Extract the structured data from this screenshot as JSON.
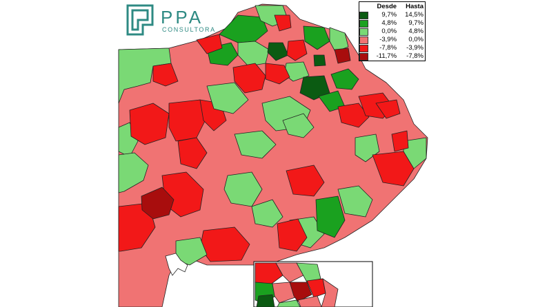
{
  "logo": {
    "brand": "PPA",
    "subtitle": "CONSULTORA"
  },
  "legend": {
    "headers": [
      "Desde",
      "Hasta"
    ],
    "rows": [
      {
        "from": "9,7%",
        "to": "14,5%",
        "color": "#0b5b12"
      },
      {
        "from": "4,8%",
        "to": "9,7%",
        "color": "#1aa11f"
      },
      {
        "from": "0,0%",
        "to": "4,8%",
        "color": "#7ad975"
      },
      {
        "from": "-3,9%",
        "to": "0,0%",
        "color": "#f07373"
      },
      {
        "from": "-7,8%",
        "to": "-3,9%",
        "color": "#f21818"
      },
      {
        "from": "-11,7%",
        "to": "-7,8%",
        "color": "#a80d0d"
      }
    ]
  },
  "colors": {
    "background": "#ffffff",
    "border": "#222222",
    "brand": "#2e8a83"
  }
}
